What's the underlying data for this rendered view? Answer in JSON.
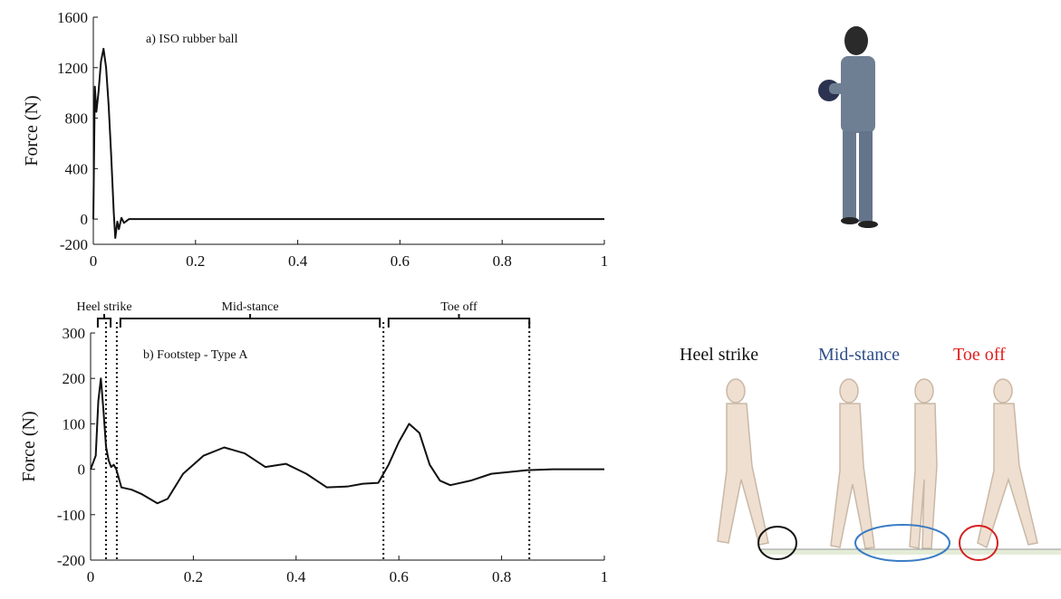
{
  "chart_data": [
    {
      "type": "line",
      "annotation": "a) ISO rubber ball",
      "y_label": "Force (N)",
      "color": "#111111",
      "x": [
        0,
        0.003,
        0.006,
        0.01,
        0.015,
        0.02,
        0.025,
        0.03,
        0.035,
        0.04,
        0.043,
        0.047,
        0.05,
        0.055,
        0.06,
        0.07,
        1
      ],
      "values": [
        0,
        1050,
        850,
        1000,
        1250,
        1350,
        1200,
        900,
        500,
        50,
        -150,
        -20,
        -80,
        10,
        -30,
        0,
        0
      ],
      "xlim": [
        0,
        1
      ],
      "xticks": [
        0,
        0.2,
        0.4,
        0.6,
        0.8,
        1
      ],
      "ylim": [
        -200,
        1600
      ],
      "yticks": [
        -200,
        0,
        400,
        800,
        1200,
        1600
      ]
    },
    {
      "type": "line",
      "annotation": "b) Footstep - Type A",
      "y_label": "Force (N)",
      "color": "#111111",
      "x": [
        0,
        0.01,
        0.015,
        0.02,
        0.025,
        0.03,
        0.035,
        0.04,
        0.045,
        0.05,
        0.06,
        0.08,
        0.1,
        0.13,
        0.15,
        0.18,
        0.22,
        0.26,
        0.3,
        0.34,
        0.38,
        0.42,
        0.46,
        0.5,
        0.53,
        0.56,
        0.58,
        0.6,
        0.62,
        0.64,
        0.66,
        0.68,
        0.7,
        0.74,
        0.78,
        0.85,
        0.9,
        1
      ],
      "values": [
        0,
        30,
        150,
        200,
        130,
        50,
        20,
        5,
        10,
        0,
        -40,
        -45,
        -55,
        -75,
        -65,
        -10,
        30,
        48,
        35,
        5,
        12,
        -10,
        -40,
        -38,
        -32,
        -30,
        10,
        60,
        100,
        80,
        10,
        -25,
        -35,
        -25,
        -10,
        -2,
        0,
        0
      ],
      "xlim": [
        0,
        1
      ],
      "xticks": [
        0,
        0.2,
        0.4,
        0.6,
        0.8,
        1
      ],
      "ylim": [
        -200,
        300
      ],
      "yticks": [
        -200,
        -100,
        0,
        100,
        200,
        300
      ],
      "phases": [
        {
          "label": "Heel strike",
          "start": 0.014,
          "end": 0.039
        },
        {
          "label": "Mid-stance",
          "start": 0.058,
          "end": 0.563
        },
        {
          "label": "Toe off",
          "start": 0.58,
          "end": 0.854
        }
      ],
      "vlines": [
        0.03,
        0.051,
        0.57,
        0.854
      ]
    }
  ],
  "illustration_labels": [
    "Heel strike",
    "Mid-stance",
    "Toe off"
  ]
}
